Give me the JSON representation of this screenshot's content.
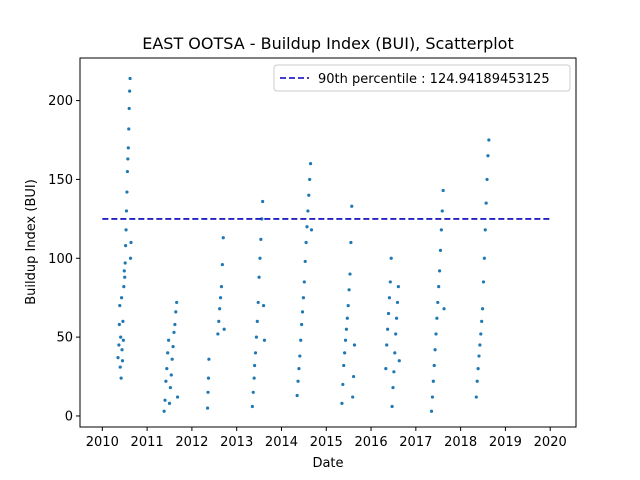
{
  "chart_data": {
    "type": "scatter",
    "title": "EAST OOTSA - Buildup Index (BUI), Scatterplot",
    "xlabel": "Date",
    "ylabel": "Buildup Index (BUI)",
    "xlim": [
      2010,
      2020
    ],
    "ylim": [
      -7,
      227
    ],
    "x_ticks": [
      "2010",
      "2011",
      "2012",
      "2013",
      "2014",
      "2015",
      "2016",
      "2017",
      "2018",
      "2019",
      "2020"
    ],
    "y_ticks": [
      0,
      50,
      100,
      150,
      200
    ],
    "grid": false,
    "legend_position": "top-right",
    "colors": {
      "points": "#1f77b4",
      "percentile_line": "#0000bb"
    },
    "reference_line": {
      "label": "90th percentile : 124.94189453125",
      "value": 124.94189453125,
      "style": "dashed",
      "x_range": [
        2010,
        2020
      ]
    },
    "series": [
      {
        "points": [
          [
            2010.35,
            37
          ],
          [
            2010.37,
            45
          ],
          [
            2010.38,
            58
          ],
          [
            2010.39,
            70
          ],
          [
            2010.4,
            31
          ],
          [
            2010.41,
            50
          ],
          [
            2010.42,
            24
          ],
          [
            2010.43,
            75
          ],
          [
            2010.44,
            42
          ],
          [
            2010.45,
            35
          ],
          [
            2010.46,
            60
          ],
          [
            2010.47,
            48
          ],
          [
            2010.48,
            82
          ],
          [
            2010.49,
            92
          ],
          [
            2010.5,
            88
          ],
          [
            2010.51,
            97
          ],
          [
            2010.52,
            108
          ],
          [
            2010.53,
            118
          ],
          [
            2010.54,
            130
          ],
          [
            2010.55,
            142
          ],
          [
            2010.56,
            155
          ],
          [
            2010.57,
            163
          ],
          [
            2010.58,
            170
          ],
          [
            2010.59,
            182
          ],
          [
            2010.6,
            195
          ],
          [
            2010.61,
            206
          ],
          [
            2010.62,
            214
          ],
          [
            2010.63,
            100
          ],
          [
            2010.64,
            110
          ],
          [
            2011.38,
            3
          ],
          [
            2011.4,
            10
          ],
          [
            2011.42,
            22
          ],
          [
            2011.44,
            30
          ],
          [
            2011.46,
            40
          ],
          [
            2011.48,
            48
          ],
          [
            2011.5,
            8
          ],
          [
            2011.52,
            18
          ],
          [
            2011.54,
            26
          ],
          [
            2011.56,
            36
          ],
          [
            2011.58,
            44
          ],
          [
            2011.6,
            53
          ],
          [
            2011.62,
            58
          ],
          [
            2011.64,
            66
          ],
          [
            2011.66,
            72
          ],
          [
            2011.68,
            12
          ],
          [
            2012.35,
            5
          ],
          [
            2012.36,
            15
          ],
          [
            2012.37,
            24
          ],
          [
            2012.38,
            36
          ],
          [
            2012.58,
            52
          ],
          [
            2012.6,
            60
          ],
          [
            2012.62,
            68
          ],
          [
            2012.64,
            75
          ],
          [
            2012.66,
            82
          ],
          [
            2012.68,
            96
          ],
          [
            2012.7,
            113
          ],
          [
            2012.72,
            55
          ],
          [
            2013.35,
            6
          ],
          [
            2013.37,
            15
          ],
          [
            2013.39,
            24
          ],
          [
            2013.4,
            32
          ],
          [
            2013.42,
            40
          ],
          [
            2013.44,
            50
          ],
          [
            2013.46,
            60
          ],
          [
            2013.48,
            72
          ],
          [
            2013.5,
            88
          ],
          [
            2013.52,
            100
          ],
          [
            2013.54,
            112
          ],
          [
            2013.56,
            125
          ],
          [
            2013.58,
            136
          ],
          [
            2013.6,
            70
          ],
          [
            2013.62,
            48
          ],
          [
            2014.35,
            13
          ],
          [
            2014.37,
            22
          ],
          [
            2014.39,
            30
          ],
          [
            2014.41,
            38
          ],
          [
            2014.43,
            48
          ],
          [
            2014.45,
            58
          ],
          [
            2014.47,
            66
          ],
          [
            2014.49,
            75
          ],
          [
            2014.51,
            85
          ],
          [
            2014.53,
            98
          ],
          [
            2014.55,
            110
          ],
          [
            2014.57,
            120
          ],
          [
            2014.59,
            130
          ],
          [
            2014.61,
            140
          ],
          [
            2014.63,
            150
          ],
          [
            2014.65,
            160
          ],
          [
            2014.67,
            118
          ],
          [
            2015.35,
            8
          ],
          [
            2015.37,
            20
          ],
          [
            2015.39,
            32
          ],
          [
            2015.41,
            40
          ],
          [
            2015.43,
            48
          ],
          [
            2015.45,
            55
          ],
          [
            2015.47,
            62
          ],
          [
            2015.49,
            70
          ],
          [
            2015.51,
            80
          ],
          [
            2015.53,
            90
          ],
          [
            2015.55,
            110
          ],
          [
            2015.57,
            133
          ],
          [
            2015.59,
            12
          ],
          [
            2015.61,
            25
          ],
          [
            2015.63,
            45
          ],
          [
            2016.33,
            30
          ],
          [
            2016.35,
            45
          ],
          [
            2016.37,
            55
          ],
          [
            2016.39,
            65
          ],
          [
            2016.41,
            75
          ],
          [
            2016.43,
            85
          ],
          [
            2016.45,
            100
          ],
          [
            2016.47,
            6
          ],
          [
            2016.49,
            18
          ],
          [
            2016.51,
            28
          ],
          [
            2016.53,
            40
          ],
          [
            2016.55,
            52
          ],
          [
            2016.57,
            62
          ],
          [
            2016.59,
            72
          ],
          [
            2016.61,
            82
          ],
          [
            2016.63,
            35
          ],
          [
            2017.35,
            3
          ],
          [
            2017.37,
            12
          ],
          [
            2017.39,
            22
          ],
          [
            2017.41,
            32
          ],
          [
            2017.43,
            42
          ],
          [
            2017.45,
            52
          ],
          [
            2017.47,
            62
          ],
          [
            2017.49,
            72
          ],
          [
            2017.51,
            82
          ],
          [
            2017.53,
            92
          ],
          [
            2017.55,
            105
          ],
          [
            2017.57,
            118
          ],
          [
            2017.59,
            130
          ],
          [
            2017.61,
            143
          ],
          [
            2017.63,
            68
          ],
          [
            2018.35,
            12
          ],
          [
            2018.37,
            22
          ],
          [
            2018.39,
            30
          ],
          [
            2018.41,
            38
          ],
          [
            2018.43,
            45
          ],
          [
            2018.45,
            52
          ],
          [
            2018.47,
            60
          ],
          [
            2018.49,
            68
          ],
          [
            2018.51,
            85
          ],
          [
            2018.53,
            100
          ],
          [
            2018.55,
            118
          ],
          [
            2018.57,
            135
          ],
          [
            2018.59,
            150
          ],
          [
            2018.61,
            165
          ],
          [
            2018.63,
            175
          ]
        ]
      }
    ]
  }
}
